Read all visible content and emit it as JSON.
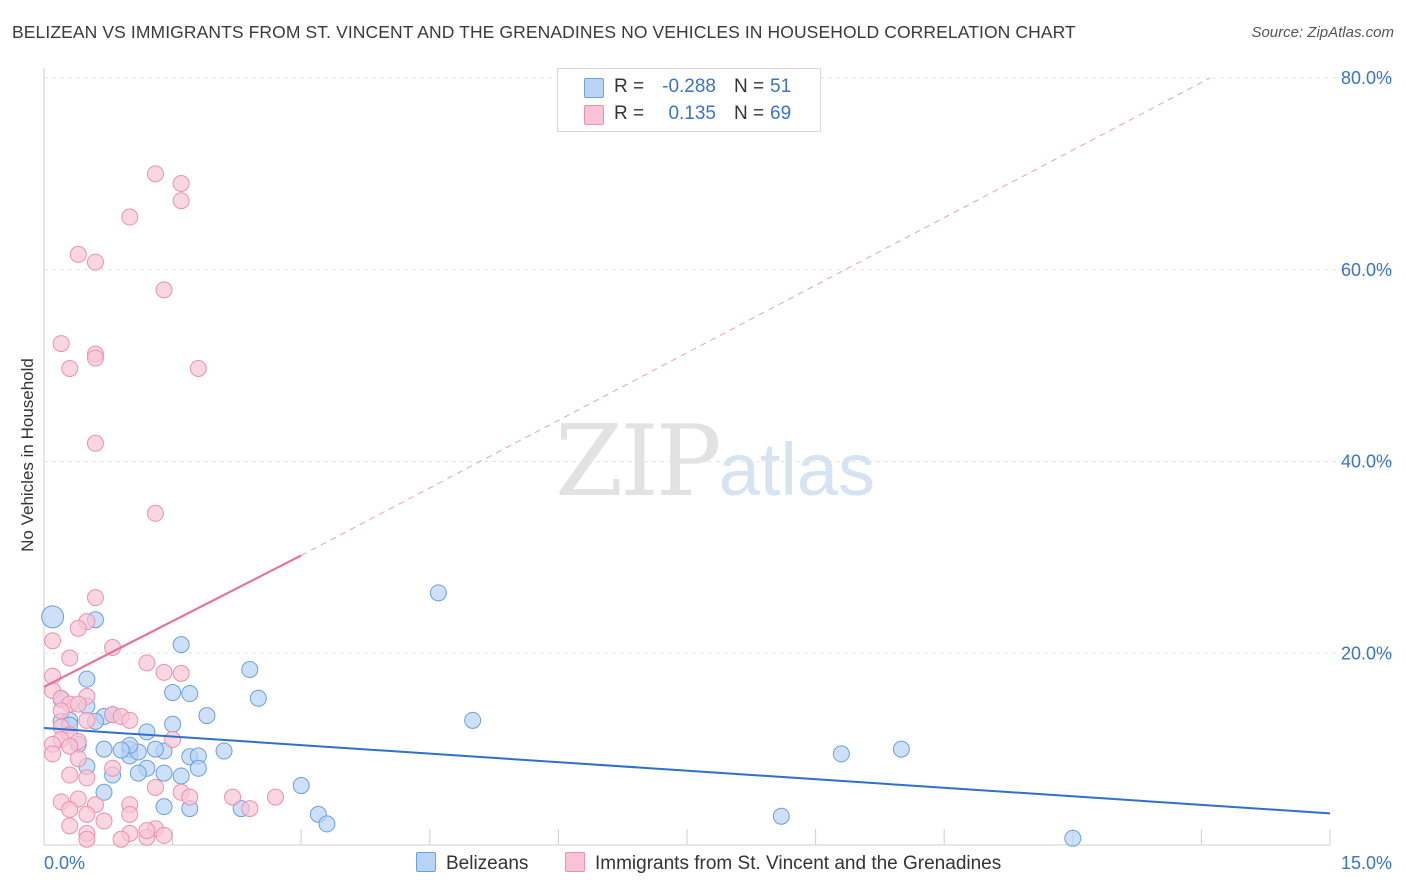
{
  "title": "BELIZEAN VS IMMIGRANTS FROM ST. VINCENT AND THE GRENADINES NO VEHICLES IN HOUSEHOLD CORRELATION CHART",
  "source": "Source: ZipAtlas.com",
  "watermark": {
    "zip": "ZIP",
    "atlas": "atlas"
  },
  "legend": {
    "r_label": "R =",
    "n_label": "N =",
    "rows": [
      {
        "r": "-0.288",
        "n": "51"
      },
      {
        "r": "0.135",
        "n": "69"
      }
    ]
  },
  "colors": {
    "blue_fill": "#b9d3f5",
    "blue_stroke": "#6a9fe0",
    "blue_line": "#2e6fcf",
    "pink_fill": "#f8c4d4",
    "pink_stroke": "#ec90ad",
    "pink_line": "#e8709a",
    "tick_text": "#3a73c9"
  },
  "chart_data": {
    "type": "scatter",
    "title": "BELIZEAN VS IMMIGRANTS FROM ST. VINCENT AND THE GRENADINES NO VEHICLES IN HOUSEHOLD CORRELATION CHART",
    "xlabel": "",
    "ylabel": "No Vehicles in Household",
    "xlim": [
      0,
      15
    ],
    "ylim": [
      0,
      80
    ],
    "x_tick_labels": [
      "0.0%",
      "15.0%"
    ],
    "y_ticks": [
      20,
      40,
      60,
      80
    ],
    "y_tick_labels": [
      "20.0%",
      "40.0%",
      "60.0%",
      "80.0%"
    ],
    "grid": true,
    "series": [
      {
        "name": "Belizeans",
        "r": -0.288,
        "n": 51,
        "trend": {
          "x0": 0,
          "y0": 12.2,
          "x1": 15,
          "y1": 3.3,
          "dashed_to": null
        },
        "points": [
          [
            0.1,
            23.8
          ],
          [
            0.6,
            23.5
          ],
          [
            1.6,
            20.9
          ],
          [
            1.5,
            15.9
          ],
          [
            1.7,
            15.8
          ],
          [
            0.5,
            17.3
          ],
          [
            2.4,
            18.3
          ],
          [
            2.5,
            15.3
          ],
          [
            0.2,
            15.2
          ],
          [
            0.5,
            14.5
          ],
          [
            0.7,
            13.4
          ],
          [
            0.8,
            13.6
          ],
          [
            1.9,
            13.5
          ],
          [
            0.2,
            12.9
          ],
          [
            0.3,
            13.0
          ],
          [
            1.5,
            12.6
          ],
          [
            1.2,
            11.8
          ],
          [
            0.4,
            10.5
          ],
          [
            0.7,
            10.0
          ],
          [
            1.0,
            10.0
          ],
          [
            1.0,
            9.3
          ],
          [
            1.1,
            9.7
          ],
          [
            1.4,
            9.8
          ],
          [
            1.3,
            10.0
          ],
          [
            2.1,
            9.8
          ],
          [
            1.7,
            9.2
          ],
          [
            1.8,
            9.3
          ],
          [
            0.5,
            8.2
          ],
          [
            1.2,
            8.0
          ],
          [
            1.4,
            7.5
          ],
          [
            1.6,
            7.2
          ],
          [
            1.8,
            8.0
          ],
          [
            1.1,
            7.5
          ],
          [
            0.8,
            7.3
          ],
          [
            0.7,
            5.5
          ],
          [
            1.4,
            4.0
          ],
          [
            1.7,
            3.8
          ],
          [
            2.3,
            3.8
          ],
          [
            3.0,
            6.2
          ],
          [
            3.2,
            3.2
          ],
          [
            3.3,
            2.2
          ],
          [
            4.6,
            26.3
          ],
          [
            5.0,
            13.0
          ],
          [
            9.3,
            9.5
          ],
          [
            10.0,
            10.0
          ],
          [
            8.6,
            3.0
          ],
          [
            12.0,
            0.7
          ],
          [
            0.3,
            12.5
          ],
          [
            0.6,
            12.9
          ],
          [
            1.0,
            10.4
          ],
          [
            0.9,
            9.9
          ]
        ]
      },
      {
        "name": "Immigrants from St. Vincent and the Grenadines",
        "r": 0.135,
        "n": 69,
        "trend": {
          "x0": 0,
          "y0": 16.5,
          "x1": 3.0,
          "y1": 30.2,
          "dashed_to": [
            13.6,
            80
          ]
        },
        "points": [
          [
            1.3,
            70.0
          ],
          [
            1.6,
            69.0
          ],
          [
            1.6,
            67.2
          ],
          [
            1.0,
            65.5
          ],
          [
            0.4,
            61.6
          ],
          [
            0.6,
            60.8
          ],
          [
            1.4,
            57.9
          ],
          [
            0.2,
            52.3
          ],
          [
            0.6,
            51.2
          ],
          [
            0.6,
            50.8
          ],
          [
            0.3,
            49.7
          ],
          [
            1.8,
            49.7
          ],
          [
            0.6,
            41.9
          ],
          [
            1.3,
            34.6
          ],
          [
            0.6,
            25.8
          ],
          [
            0.5,
            23.3
          ],
          [
            0.4,
            22.6
          ],
          [
            0.1,
            21.3
          ],
          [
            0.8,
            20.6
          ],
          [
            0.3,
            19.5
          ],
          [
            1.2,
            19.0
          ],
          [
            1.4,
            18.0
          ],
          [
            1.6,
            17.9
          ],
          [
            0.1,
            17.6
          ],
          [
            0.1,
            16.1
          ],
          [
            0.2,
            15.3
          ],
          [
            0.5,
            15.5
          ],
          [
            0.3,
            14.7
          ],
          [
            0.4,
            14.7
          ],
          [
            0.2,
            14.0
          ],
          [
            0.8,
            13.6
          ],
          [
            0.9,
            13.4
          ],
          [
            0.5,
            13.0
          ],
          [
            1.0,
            13.0
          ],
          [
            0.2,
            12.3
          ],
          [
            0.3,
            11.5
          ],
          [
            0.2,
            11.0
          ],
          [
            0.4,
            10.8
          ],
          [
            0.1,
            10.5
          ],
          [
            0.3,
            10.3
          ],
          [
            1.5,
            11.0
          ],
          [
            0.1,
            9.5
          ],
          [
            0.4,
            9.0
          ],
          [
            0.8,
            8.0
          ],
          [
            0.3,
            7.3
          ],
          [
            0.5,
            7.0
          ],
          [
            1.3,
            6.0
          ],
          [
            1.6,
            5.5
          ],
          [
            1.7,
            5.0
          ],
          [
            2.2,
            5.0
          ],
          [
            2.7,
            5.0
          ],
          [
            0.4,
            4.8
          ],
          [
            0.2,
            4.5
          ],
          [
            0.6,
            4.2
          ],
          [
            1.0,
            4.2
          ],
          [
            2.4,
            3.8
          ],
          [
            0.5,
            3.2
          ],
          [
            0.3,
            3.7
          ],
          [
            1.0,
            3.2
          ],
          [
            0.7,
            2.5
          ],
          [
            0.3,
            2.0
          ],
          [
            1.3,
            1.7
          ],
          [
            0.5,
            1.2
          ],
          [
            1.0,
            1.2
          ],
          [
            1.2,
            0.8
          ],
          [
            0.5,
            0.6
          ],
          [
            1.4,
            1.0
          ],
          [
            0.9,
            0.6
          ],
          [
            1.2,
            1.5
          ]
        ]
      }
    ]
  }
}
